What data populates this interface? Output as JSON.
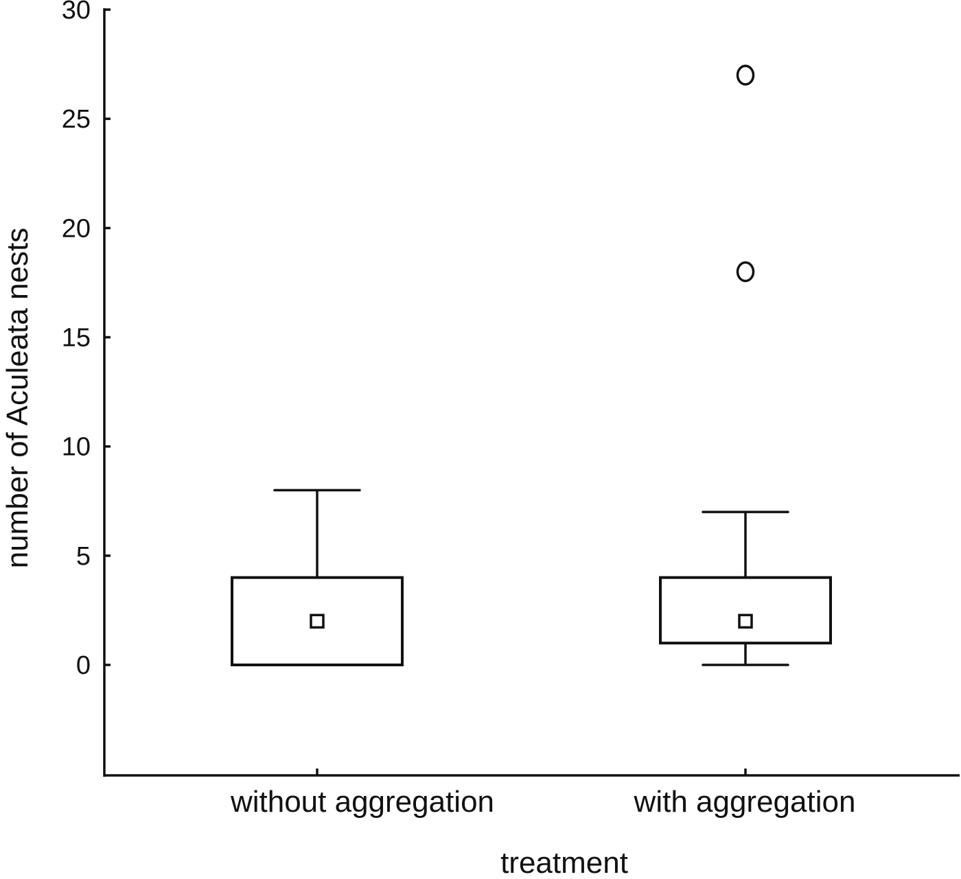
{
  "chart_data": {
    "type": "box",
    "title": "",
    "xlabel": "treatment",
    "ylabel": "number of Aculeata nests",
    "ylim": [
      -5,
      30
    ],
    "yticks": [
      0,
      5,
      10,
      15,
      20,
      25,
      30
    ],
    "grid": false,
    "legend": null,
    "categories": [
      "without aggregation",
      "with aggregation"
    ],
    "series": [
      {
        "name": "without aggregation",
        "median": 2,
        "q1": 0,
        "q3": 4,
        "whisker_low": 0,
        "whisker_high": 8,
        "outliers": []
      },
      {
        "name": "with aggregation",
        "median": 2,
        "q1": 1,
        "q3": 4,
        "whisker_low": 0,
        "whisker_high": 7,
        "outliers": [
          18,
          27
        ]
      }
    ],
    "notes": "Box = interquartile range, small square = median, whiskers = non-outlier range, circles = outliers"
  },
  "colors": {
    "stroke": "#111111",
    "background": "#ffffff"
  }
}
